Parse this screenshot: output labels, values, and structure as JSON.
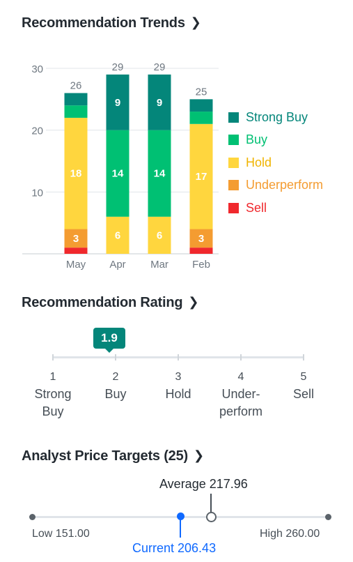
{
  "sections": {
    "trends_title": "Recommendation Trends",
    "rating_title": "Recommendation Rating",
    "targets_title": "Analyst Price Targets (25)"
  },
  "chart_data": {
    "type": "bar",
    "stacked": true,
    "categories": [
      "May",
      "Apr",
      "Mar",
      "Feb"
    ],
    "totals": [
      26,
      29,
      29,
      25
    ],
    "ylim": [
      0,
      30
    ],
    "yticks": [
      10,
      20,
      30
    ],
    "grid": true,
    "legend_position": "right",
    "series": [
      {
        "name": "Sell",
        "color": "#f0282d",
        "values": [
          1,
          0,
          0,
          1
        ]
      },
      {
        "name": "Underperform",
        "color": "#f49c31",
        "values": [
          3,
          0,
          0,
          3
        ]
      },
      {
        "name": "Hold",
        "color": "#ffd63e",
        "values": [
          18,
          6,
          6,
          17
        ]
      },
      {
        "name": "Buy",
        "color": "#00c073",
        "values": [
          2,
          14,
          14,
          2
        ]
      },
      {
        "name": "Strong Buy",
        "color": "#04867a",
        "values": [
          2,
          9,
          9,
          2
        ]
      }
    ]
  },
  "legend": [
    {
      "name": "Strong Buy",
      "color": "#04867a"
    },
    {
      "name": "Buy",
      "color": "#00c073"
    },
    {
      "name": "Hold",
      "color": "#ffd63e"
    },
    {
      "name": "Underperform",
      "color": "#f49c31"
    },
    {
      "name": "Sell",
      "color": "#f0282d"
    }
  ],
  "rating": {
    "value": "1.9",
    "scale": [
      {
        "num": "1",
        "line1": "Strong",
        "line2": "Buy"
      },
      {
        "num": "2",
        "line1": "Buy",
        "line2": ""
      },
      {
        "num": "3",
        "line1": "Hold",
        "line2": ""
      },
      {
        "num": "4",
        "line1": "Under-",
        "line2": "perform"
      },
      {
        "num": "5",
        "line1": "Sell",
        "line2": ""
      }
    ]
  },
  "price_targets": {
    "low_label": "Low 151.00",
    "high_label": "High 260.00",
    "average_label": "Average 217.96",
    "current_label": "Current 206.43",
    "low": 151.0,
    "high": 260.0,
    "average": 217.96,
    "current": 206.43,
    "current_color": "#0f69ff"
  }
}
